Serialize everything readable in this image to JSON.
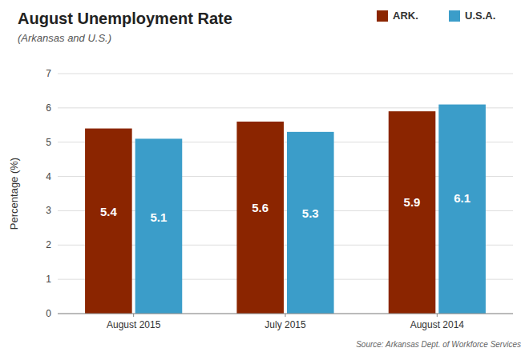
{
  "chart_data": {
    "type": "bar",
    "title": "August Unemployment Rate",
    "subtitle": "(Arkansas and U.S.)",
    "y_label": "Percentage (%)",
    "categories": [
      "August 2015",
      "July 2015",
      "August 2014"
    ],
    "series": [
      {
        "name": "ARK.",
        "color": "#8B2500",
        "values": [
          5.4,
          5.6,
          5.9
        ]
      },
      {
        "name": "U.S.A.",
        "color": "#3B9DC9",
        "values": [
          5.1,
          5.3,
          6.1
        ]
      }
    ],
    "ylim": [
      0,
      7
    ],
    "yticks": [
      0,
      1,
      2,
      3,
      4,
      5,
      6,
      7
    ],
    "grid": true,
    "legend": "top-right",
    "data_labels": true,
    "annotations": [
      "Source: Arkansas Dept. of Workforce Services"
    ]
  }
}
